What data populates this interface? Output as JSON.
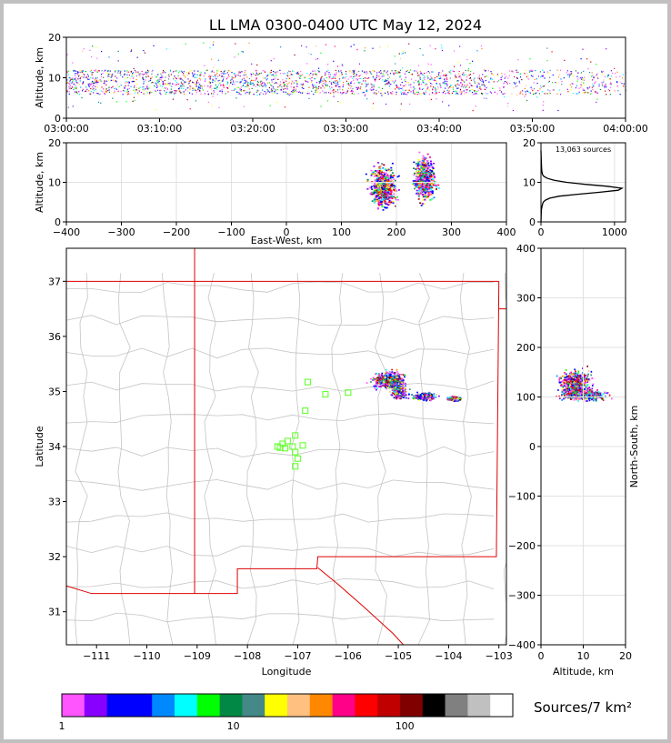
{
  "chart_data": [
    {
      "type": "scatter",
      "id": "time_altitude",
      "title": "LL LMA 0300-0400 UTC May 12, 2024",
      "ylabel": "Altitude, km",
      "ylim": [
        0,
        20
      ],
      "yticks": [
        0,
        10,
        20
      ],
      "xlim": [
        "03:00:00",
        "04:00:00"
      ],
      "xticks": [
        "03:00:00",
        "03:10:00",
        "03:20:00",
        "03:30:00",
        "03:40:00",
        "03:50:00",
        "04:00:00"
      ],
      "band_altitude_km": [
        6,
        12
      ]
    },
    {
      "type": "scatter",
      "id": "ew_altitude",
      "xlabel": "East-West, km",
      "ylabel": "Altitude, km",
      "xlim": [
        -400,
        400
      ],
      "ylim": [
        0,
        20
      ],
      "xticks": [
        -400,
        -300,
        -200,
        -100,
        0,
        100,
        200,
        300,
        400
      ],
      "yticks": [
        0,
        10,
        20
      ],
      "clusters": [
        {
          "x_km": 175,
          "alt_km": 9,
          "spread_x": 18,
          "spread_alt": 4
        },
        {
          "x_km": 250,
          "alt_km": 11,
          "spread_x": 15,
          "spread_alt": 4
        }
      ]
    },
    {
      "type": "line",
      "id": "altitude_histogram",
      "annotation": "13,063 sources",
      "xlim": [
        0,
        1150
      ],
      "ylim": [
        0,
        20
      ],
      "xticks": [
        0,
        1000
      ],
      "yticks": [
        0,
        10,
        20
      ],
      "x": [
        0,
        5,
        15,
        30,
        60,
        120,
        250,
        500,
        800,
        1050,
        1100,
        900,
        600,
        350,
        180,
        90,
        40,
        20,
        10,
        5,
        0
      ],
      "y": [
        0,
        3,
        4,
        5,
        5.5,
        6,
        6.5,
        7,
        7.5,
        8,
        8.5,
        9,
        9.5,
        10,
        10.5,
        11,
        11.5,
        12,
        13,
        15,
        18
      ]
    },
    {
      "type": "scatter",
      "id": "plan_view",
      "xlabel": "Longitude",
      "ylabel": "Latitude",
      "xlim": [
        -111.6,
        -102.85
      ],
      "ylim": [
        30.4,
        37.6
      ],
      "xticks": [
        -111,
        -110,
        -109,
        -108,
        -107,
        -106,
        -105,
        -104,
        -103
      ],
      "yticks": [
        31,
        32,
        33,
        34,
        35,
        36,
        37
      ],
      "stations": [
        {
          "lon": -106.8,
          "lat": 35.17
        },
        {
          "lon": -106.45,
          "lat": 34.95
        },
        {
          "lon": -106.0,
          "lat": 34.98
        },
        {
          "lon": -106.85,
          "lat": 34.65
        },
        {
          "lon": -107.05,
          "lat": 34.2
        },
        {
          "lon": -107.2,
          "lat": 34.1
        },
        {
          "lon": -107.3,
          "lat": 34.05
        },
        {
          "lon": -107.4,
          "lat": 34.0
        },
        {
          "lon": -107.25,
          "lat": 33.97
        },
        {
          "lon": -107.1,
          "lat": 34.0
        },
        {
          "lon": -107.05,
          "lat": 33.9
        },
        {
          "lon": -106.9,
          "lat": 34.02
        },
        {
          "lon": -107.0,
          "lat": 33.78
        },
        {
          "lon": -107.05,
          "lat": 33.64
        },
        {
          "lon": -107.35,
          "lat": 33.98
        }
      ],
      "clusters": [
        {
          "lon": -105.2,
          "lat": 35.22,
          "spread_lon": 0.25,
          "spread_lat": 0.12
        },
        {
          "lon": -105.0,
          "lat": 35.0,
          "spread_lon": 0.12,
          "spread_lat": 0.1
        },
        {
          "lon": -104.5,
          "lat": 34.92,
          "spread_lon": 0.2,
          "spread_lat": 0.06
        },
        {
          "lon": -103.9,
          "lat": 34.88,
          "spread_lon": 0.1,
          "spread_lat": 0.03
        }
      ]
    },
    {
      "type": "scatter",
      "id": "altitude_ns",
      "xlabel": "Altitude, km",
      "ylabel": "North-South, km",
      "xlim": [
        0,
        20
      ],
      "ylim": [
        -400,
        400
      ],
      "xticks": [
        0,
        10,
        20
      ],
      "yticks": [
        -400,
        -300,
        -200,
        -100,
        0,
        100,
        200,
        300,
        400
      ],
      "clusters": [
        {
          "alt_km": 8,
          "ns_km": 130,
          "spread_alt": 3,
          "spread_ns": 20
        },
        {
          "alt_km": 10,
          "ns_km": 105,
          "spread_alt": 4,
          "spread_ns": 8
        }
      ]
    },
    {
      "type": "colorbar",
      "id": "density_colorbar",
      "label": "Sources/7 km²",
      "tick_labels": [
        "1",
        "10",
        "100"
      ],
      "tick_values": [
        1,
        10,
        100
      ],
      "colors": [
        "#ff55ff",
        "#8800ff",
        "#0000ff",
        "#0000ff",
        "#0088ff",
        "#00ffff",
        "#00ff00",
        "#008844",
        "#448888",
        "#ffff00",
        "#ffc080",
        "#ff8800",
        "#ff0088",
        "#ff0000",
        "#c00000",
        "#800000",
        "#000000",
        "#808080",
        "#c0c0c0",
        "#ffffff"
      ]
    }
  ]
}
